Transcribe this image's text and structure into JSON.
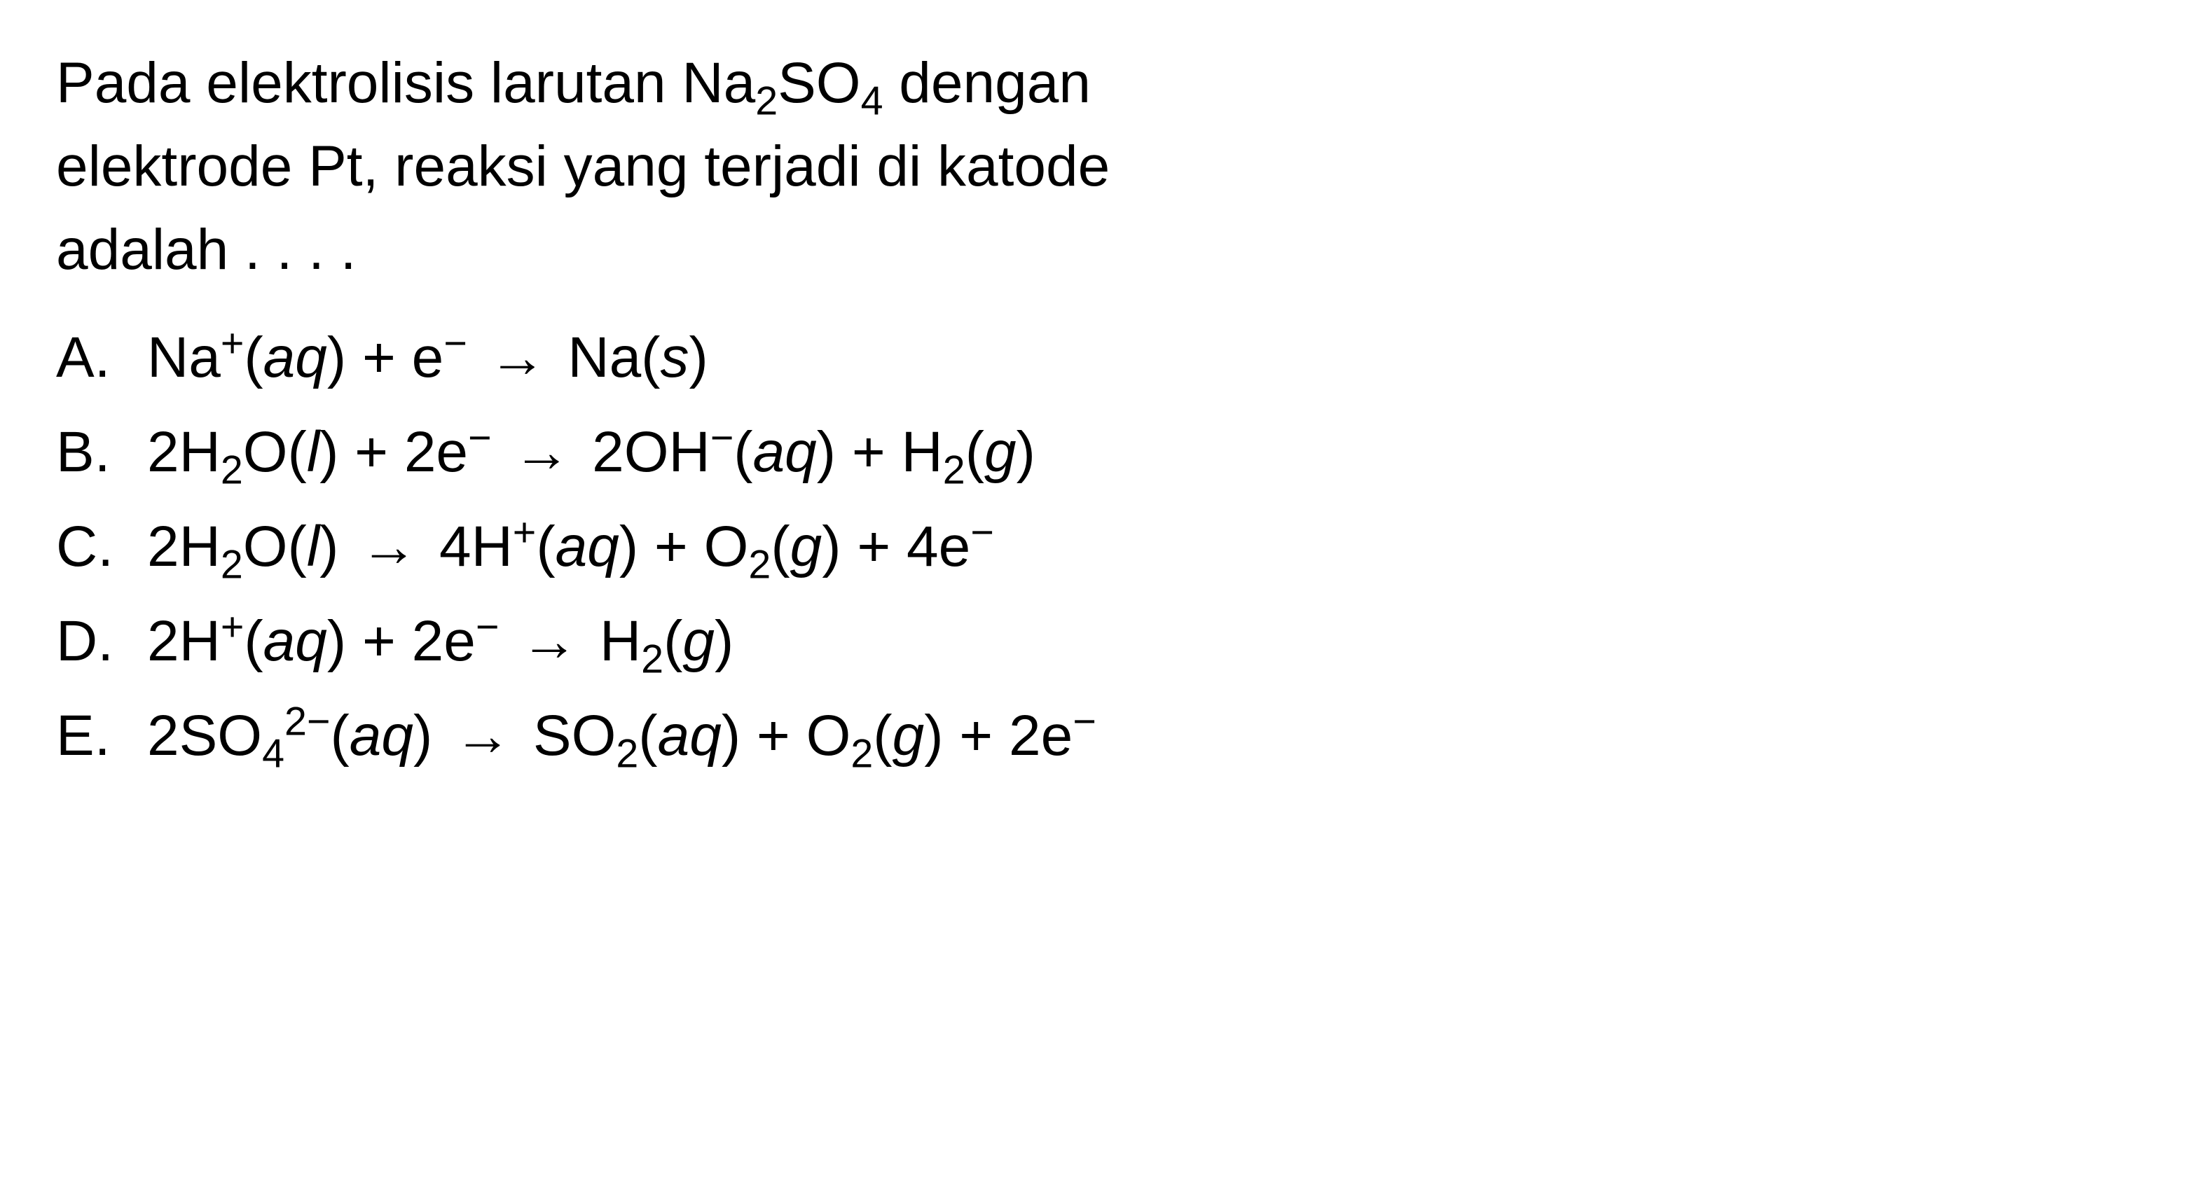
{
  "question": {
    "line1_prefix": "Pada elektrolisis larutan Na",
    "line1_sub1": "2",
    "line1_mid": "SO",
    "line1_sub2": "4",
    "line1_suffix": " dengan",
    "line2": "elektrode Pt, reaksi yang terjadi di katode",
    "line3": "adalah . . . ."
  },
  "options": {
    "a": {
      "letter": "A.",
      "p1": "Na",
      "sup1": "+",
      "p2": "(",
      "state1": "aq",
      "p3": ") + e",
      "sup2": "−",
      "arrow": "→",
      "p4": "Na(",
      "state2": "s",
      "p5": ")"
    },
    "b": {
      "letter": "B.",
      "p1": "2H",
      "sub1": "2",
      "p2": "O(",
      "state1": "l",
      "p3": ") + 2e",
      "sup1": "−",
      "arrow": "→",
      "p4": "2OH",
      "sup2": "−",
      "p5": "(",
      "state2": "aq",
      "p6": ") + H",
      "sub2": "2",
      "p7": "(",
      "state3": "g",
      "p8": ")"
    },
    "c": {
      "letter": "C.",
      "p1": "2H",
      "sub1": "2",
      "p2": "O(",
      "state1": "l",
      "p3": ")",
      "arrow": "→",
      "p4": "4H",
      "sup1": "+",
      "p5": "(",
      "state2": "aq",
      "p6": ") + O",
      "sub2": "2",
      "p7": "(",
      "state3": "g",
      "p8": ") + 4e",
      "sup2": "−"
    },
    "d": {
      "letter": "D.",
      "p1": "2H",
      "sup1": "+",
      "p2": "(",
      "state1": "aq",
      "p3": ") + 2e",
      "sup2": "−",
      "arrow": "→",
      "p4": "H",
      "sub1": "2",
      "p5": "(",
      "state2": "g",
      "p6": ")"
    },
    "e": {
      "letter": "E.",
      "p1": "2SO",
      "sub1": "4",
      "sup1": "2−",
      "p2": "(",
      "state1": "aq",
      "p3": ")",
      "arrow": "→",
      "p4": "SO",
      "sub2": "2",
      "p5": "(",
      "state2": "aq",
      "p6": ") + O",
      "sub3": "2",
      "p7": "(",
      "state3": "g",
      "p8": ") + 2e",
      "sup2": "−"
    }
  },
  "colors": {
    "text": "#000000",
    "background": "#ffffff"
  },
  "typography": {
    "fontsize": 82,
    "line_height": 1.45
  }
}
